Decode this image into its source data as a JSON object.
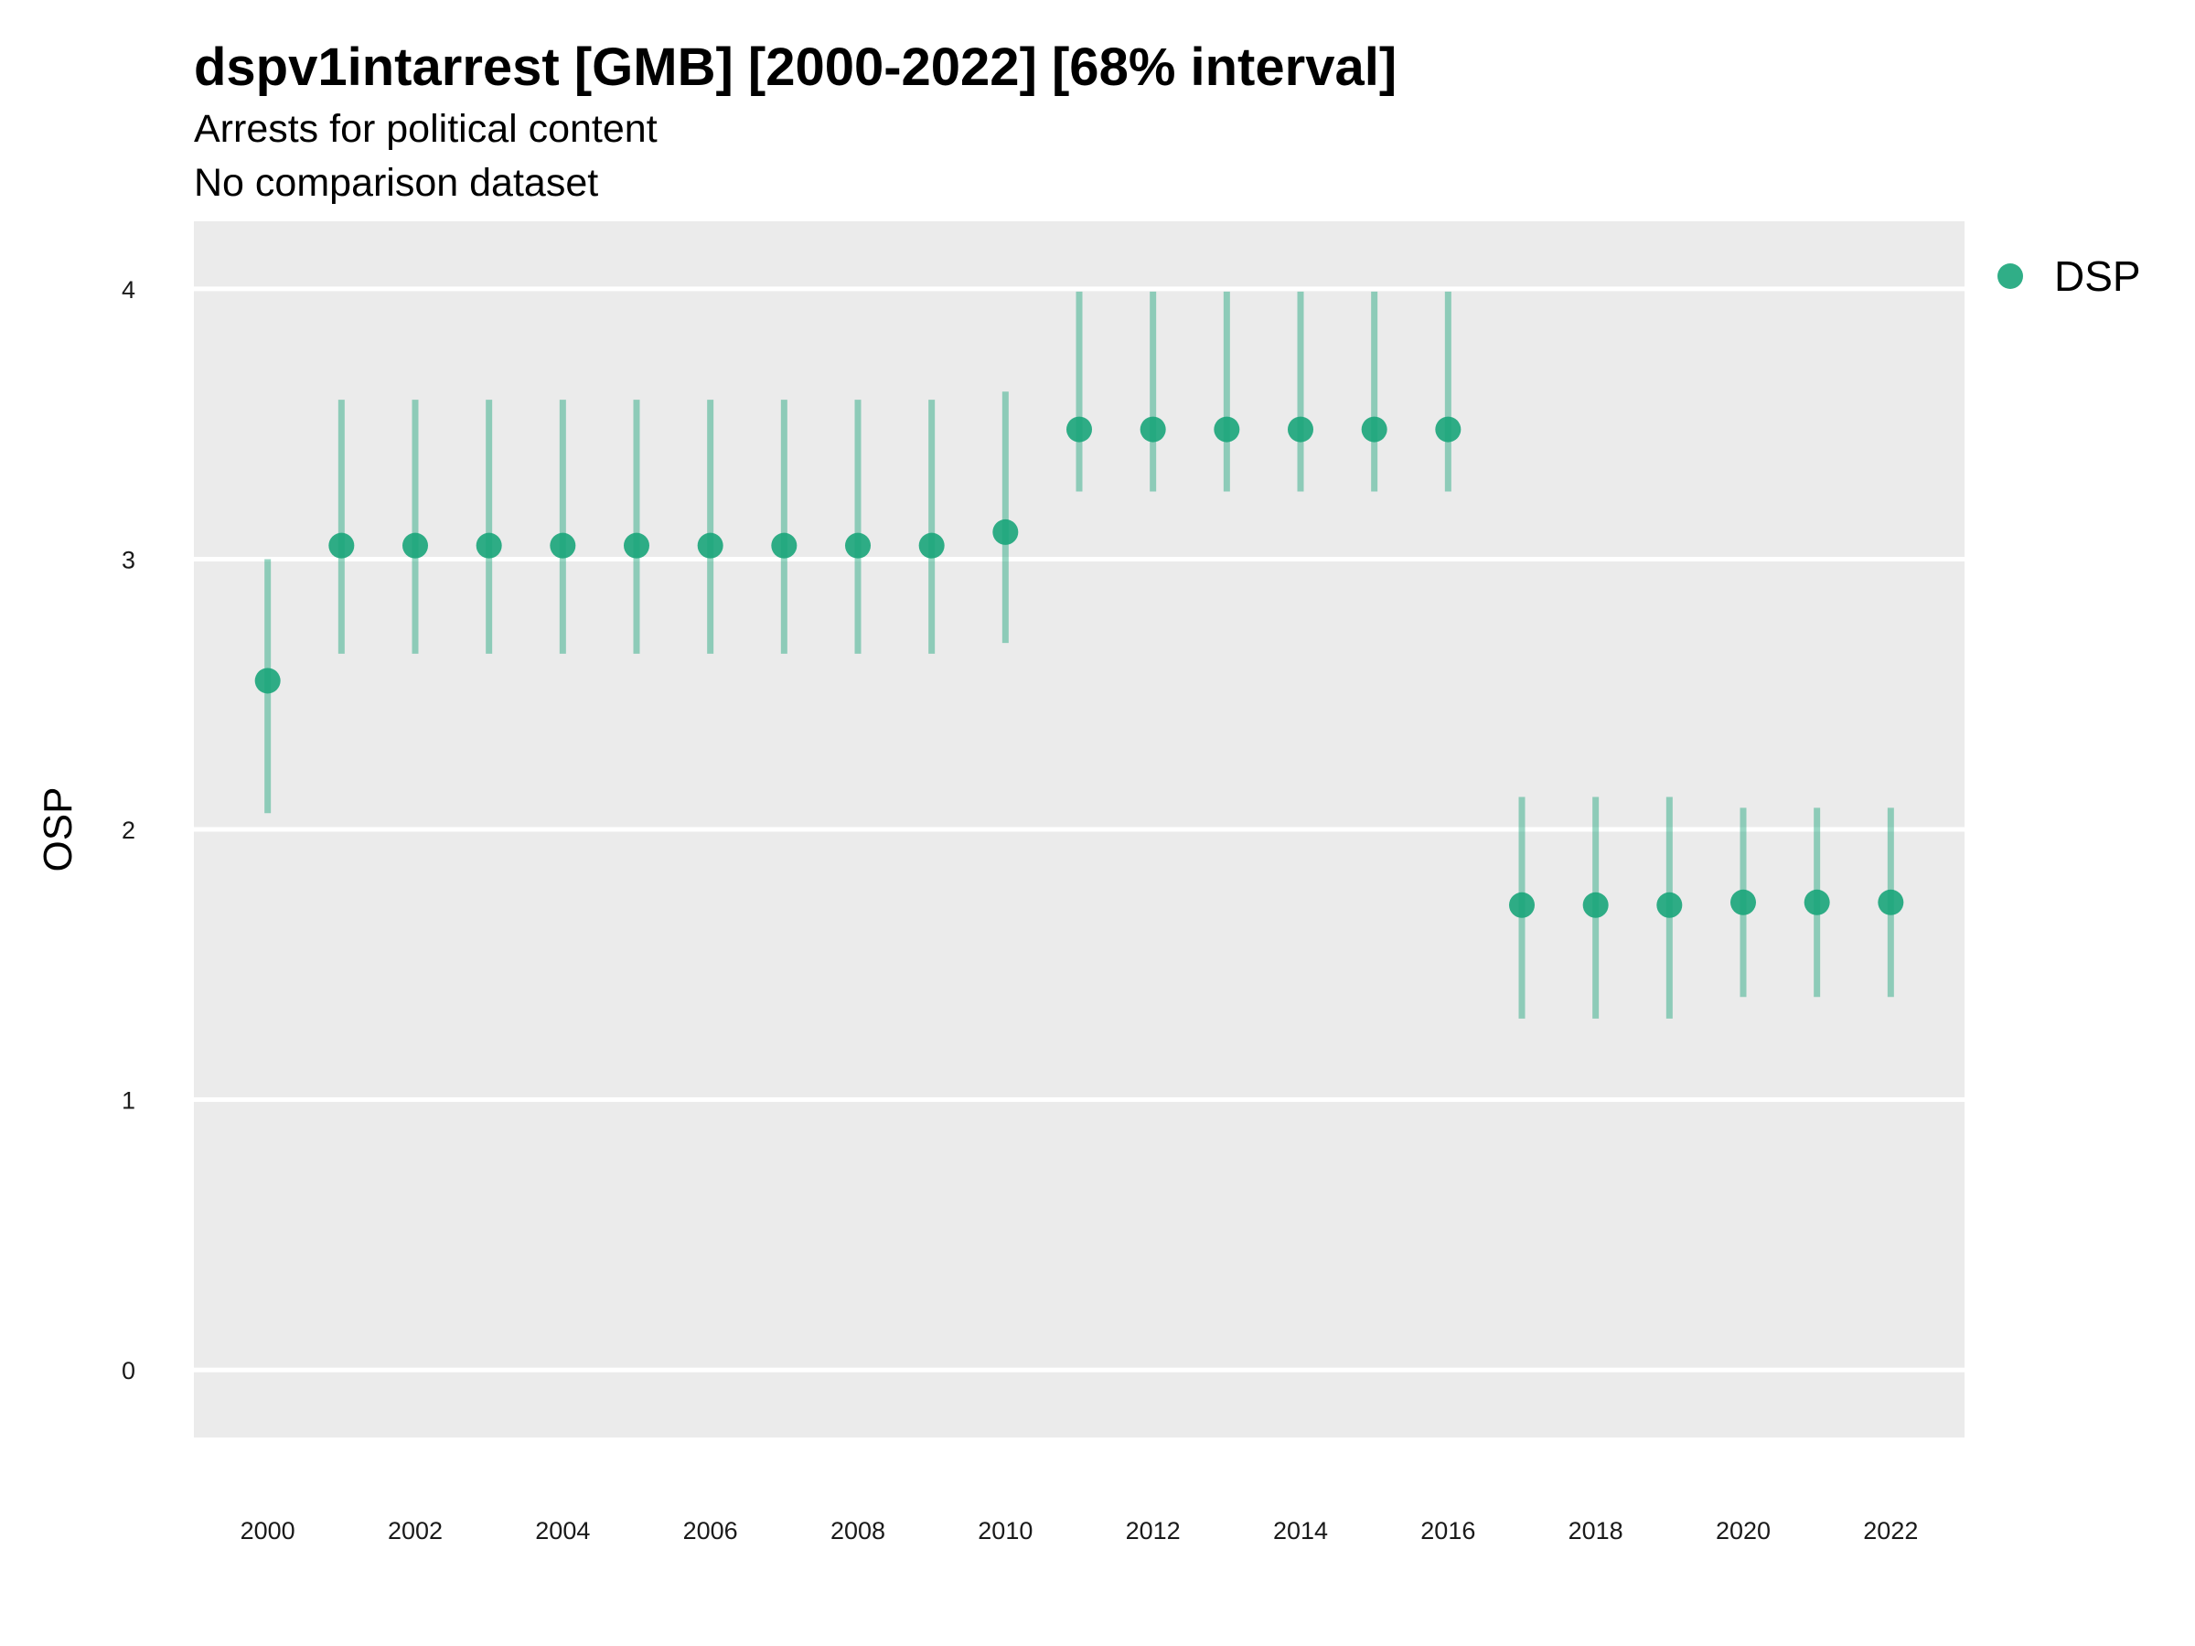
{
  "chart_data": {
    "type": "scatter",
    "title": "dspv1intarrest [GMB] [2000-2022] [68% interval]",
    "subtitle": "Arrests for political content",
    "subtitle2": "No comparison dataset",
    "xlabel": "",
    "ylabel": "OSP",
    "ylim": [
      -0.25,
      4.25
    ],
    "xlim": [
      1999,
      2023
    ],
    "y_ticks": [
      0,
      1,
      2,
      3,
      4
    ],
    "x_ticks": [
      2000,
      2002,
      2004,
      2006,
      2008,
      2010,
      2012,
      2014,
      2016,
      2018,
      2020,
      2022
    ],
    "grid": "major-y",
    "legend_position": "right",
    "series": [
      {
        "name": "DSP",
        "color": "#1aa57a",
        "x": [
          2000,
          2001,
          2002,
          2003,
          2004,
          2005,
          2006,
          2007,
          2008,
          2009,
          2010,
          2011,
          2012,
          2013,
          2014,
          2015,
          2016,
          2017,
          2018,
          2019,
          2020,
          2021,
          2022
        ],
        "y": [
          2.55,
          3.05,
          3.05,
          3.05,
          3.05,
          3.05,
          3.05,
          3.05,
          3.05,
          3.05,
          3.1,
          3.48,
          3.48,
          3.48,
          3.48,
          3.48,
          3.48,
          1.72,
          1.72,
          1.72,
          1.73,
          1.73,
          1.73
        ],
        "lower": [
          2.06,
          2.65,
          2.65,
          2.65,
          2.65,
          2.65,
          2.65,
          2.65,
          2.65,
          2.65,
          2.69,
          3.25,
          3.25,
          3.25,
          3.25,
          3.25,
          3.25,
          1.3,
          1.3,
          1.3,
          1.38,
          1.38,
          1.38
        ],
        "upper": [
          3.0,
          3.59,
          3.59,
          3.59,
          3.59,
          3.59,
          3.59,
          3.59,
          3.59,
          3.59,
          3.62,
          3.99,
          3.99,
          3.99,
          3.99,
          3.99,
          3.99,
          2.12,
          2.12,
          2.12,
          2.08,
          2.08,
          2.08
        ]
      }
    ]
  }
}
